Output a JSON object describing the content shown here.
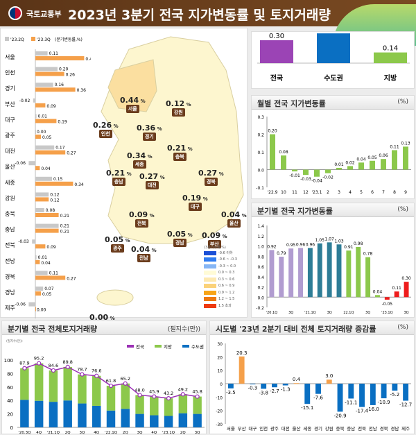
{
  "header": {
    "org": "국토교통부",
    "title": "2023년 3분기 전국 지가변동률 및 토지거래량"
  },
  "colors": {
    "q2": "#c8c8c8",
    "q3": "#f5a04a",
    "purple": "#9b44b5",
    "blue": "#0a6fc2",
    "green": "#8cc84b",
    "red": "#ee1c1c",
    "lavender": "#b19cd0",
    "teal": "#2e7d96"
  },
  "region_bars": {
    "legend": [
      "'23.2Q",
      "'23.3Q",
      "(분기변동률,%)"
    ],
    "regions": [
      {
        "name": "서울",
        "q2": 0.11,
        "q3": 0.44
      },
      {
        "name": "인천",
        "q2": 0.2,
        "q3": 0.26
      },
      {
        "name": "경기",
        "q2": 0.16,
        "q3": 0.36
      },
      {
        "name": "부산",
        "q2": -0.02,
        "q3": 0.09
      },
      {
        "name": "대구",
        "q2": 0.01,
        "q3": 0.19
      },
      {
        "name": "광주",
        "q2": 0.0,
        "q3": 0.05
      },
      {
        "name": "대전",
        "q2": 0.17,
        "q3": 0.27
      },
      {
        "name": "울산",
        "q2": -0.06,
        "q3": 0.04
      },
      {
        "name": "세종",
        "q2": 0.15,
        "q3": 0.34
      },
      {
        "name": "강원",
        "q2": 0.12,
        "q3": 0.12
      },
      {
        "name": "충북",
        "q2": 0.08,
        "q3": 0.21
      },
      {
        "name": "충남",
        "q2": 0.21,
        "q3": 0.21
      },
      {
        "name": "전북",
        "q2": -0.03,
        "q3": 0.09
      },
      {
        "name": "전남",
        "q2": 0.01,
        "q3": 0.04
      },
      {
        "name": "경북",
        "q2": 0.11,
        "q3": 0.27
      },
      {
        "name": "경남",
        "q2": 0.07,
        "q3": 0.05
      },
      {
        "name": "제주",
        "q2": -0.06,
        "q3": 0.0
      }
    ]
  },
  "map": {
    "unit": "%",
    "labels": [
      {
        "name": "서울",
        "value": "0.44"
      },
      {
        "name": "인천",
        "value": "0.26"
      },
      {
        "name": "경기",
        "value": "0.36"
      },
      {
        "name": "강원",
        "value": "0.12"
      },
      {
        "name": "충북",
        "value": "0.21"
      },
      {
        "name": "세종",
        "value": "0.34"
      },
      {
        "name": "충남",
        "value": "0.21"
      },
      {
        "name": "대전",
        "value": "0.27"
      },
      {
        "name": "경북",
        "value": "0.27"
      },
      {
        "name": "대구",
        "value": "0.19"
      },
      {
        "name": "전북",
        "value": "0.09"
      },
      {
        "name": "울산",
        "value": "0.04"
      },
      {
        "name": "경남",
        "value": "0.05"
      },
      {
        "name": "부산",
        "value": "0.09"
      },
      {
        "name": "광주",
        "value": "0.05"
      },
      {
        "name": "전남",
        "value": "0.04"
      },
      {
        "name": "제주",
        "value": "0.00"
      }
    ],
    "legend_title": "(3분기누계,%)",
    "legend": [
      {
        "label": "-0.6 이하",
        "color": "#1a4fd6"
      },
      {
        "label": "-0.6 ~ -0.3",
        "color": "#2f7bf0"
      },
      {
        "label": "-0.3 ~ 0.0",
        "color": "#86b6f5"
      },
      {
        "label": "0.0 ~ 0.3",
        "color": "#fffbd6"
      },
      {
        "label": "0.3 ~ 0.6",
        "color": "#fde9b0"
      },
      {
        "label": "0.6 ~ 0.9",
        "color": "#fbd27a"
      },
      {
        "label": "0.9 ~ 1.2",
        "color": "#f7a418"
      },
      {
        "label": "1.2 ~ 1.5",
        "color": "#ee7a10"
      },
      {
        "label": "1.5 초과",
        "color": "#ee3a10"
      }
    ]
  },
  "chart_data": [
    {
      "type": "bar",
      "title": "",
      "categories": [
        "전국",
        "수도권",
        "지방"
      ],
      "values": [
        0.3,
        0.39,
        0.14
      ]
    },
    {
      "type": "bar",
      "title": "월별 전국 지가변동률",
      "unit": "(%)",
      "categories": [
        "'22.9",
        "10",
        "11",
        "12",
        "'23.1",
        "2",
        "3",
        "4",
        "5",
        "6",
        "7",
        "8",
        "9"
      ],
      "values": [
        0.2,
        0.08,
        -0.01,
        -0.03,
        -0.04,
        -0.02,
        0.01,
        0.02,
        0.04,
        0.05,
        0.06,
        0.11,
        0.13
      ],
      "ylim": [
        -0.1,
        0.3
      ],
      "yticks": [
        "0.3",
        "0.2",
        "0.1",
        "0.0",
        "-0.1"
      ]
    },
    {
      "type": "bar",
      "title": "분기별 전국 지가변동률",
      "unit": "(%)",
      "categories": [
        "'20.1Q",
        "",
        "3Q",
        "",
        "'21.1Q",
        "",
        "3Q",
        "",
        "22.1Q",
        "",
        "3Q",
        "",
        "'23.1Q",
        "",
        "3Q"
      ],
      "values": [
        0.92,
        0.79,
        0.95,
        0.96,
        0.96,
        1.05,
        1.07,
        1.03,
        0.91,
        0.98,
        0.78,
        0.04,
        -0.05,
        0.11,
        0.3
      ],
      "ylim": [
        -0.2,
        1.4
      ],
      "yticks": [
        "1.4",
        "1.2",
        "1.0",
        "0.8",
        "0.6",
        "0.4",
        "0.2",
        "0.0",
        "-0.2"
      ]
    },
    {
      "type": "bar",
      "stacked": true,
      "title": "분기별 전국 전체토지거래량",
      "unit": "(필지수(만))",
      "ylabel": "(필지수(만))",
      "categories": [
        "'20.3Q",
        "4Q",
        "'21.1Q",
        "2Q",
        "3Q",
        "4Q",
        "'22.1Q",
        "2Q",
        "3Q",
        "4Q",
        "'23.1Q",
        "2Q",
        "3Q"
      ],
      "series": [
        {
          "name": "전국",
          "type": "line",
          "values": [
            87.9,
            95.2,
            84.6,
            89.8,
            78.7,
            76.6,
            61.8,
            65.2,
            48.0,
            45.9,
            43.2,
            49.2,
            45.8
          ]
        },
        {
          "name": "지방",
          "values": [
            46.9,
            55.7,
            46.6,
            49.8,
            43.2,
            44.6,
            36.8,
            37.7,
            28.0,
            27.9,
            26.2,
            28.2,
            25.8
          ]
        },
        {
          "name": "수도권",
          "values": [
            41.0,
            39.5,
            38.0,
            40.0,
            35.5,
            32.0,
            25.0,
            27.5,
            20.0,
            18.0,
            17.0,
            21.0,
            20.0
          ]
        }
      ],
      "ylim": [
        0,
        100
      ],
      "yticks": [
        "100",
        "80",
        "60",
        "40",
        "20",
        "0"
      ],
      "legend": "top-right"
    },
    {
      "type": "bar",
      "title": "시도별 '23년 2분기 대비 전체 토지거래량 증감률",
      "unit": "(%)",
      "categories": [
        "서울",
        "부산",
        "대구",
        "인천",
        "광주",
        "대전",
        "울산",
        "세종",
        "경기",
        "강원",
        "충북",
        "충남",
        "전북",
        "전남",
        "경북",
        "경남",
        "제주"
      ],
      "values": [
        -3.5,
        20.3,
        -0.3,
        -3.8,
        -2.7,
        -1.3,
        0.4,
        -15.1,
        -7.6,
        3.0,
        -20.9,
        -11.1,
        -17.4,
        -16.0,
        -10.9,
        -5.2,
        -12.7
      ],
      "ylim": [
        -30,
        30
      ],
      "yticks": [
        "30",
        "20",
        "10",
        "0",
        "-10",
        "-20",
        "-30"
      ]
    }
  ]
}
